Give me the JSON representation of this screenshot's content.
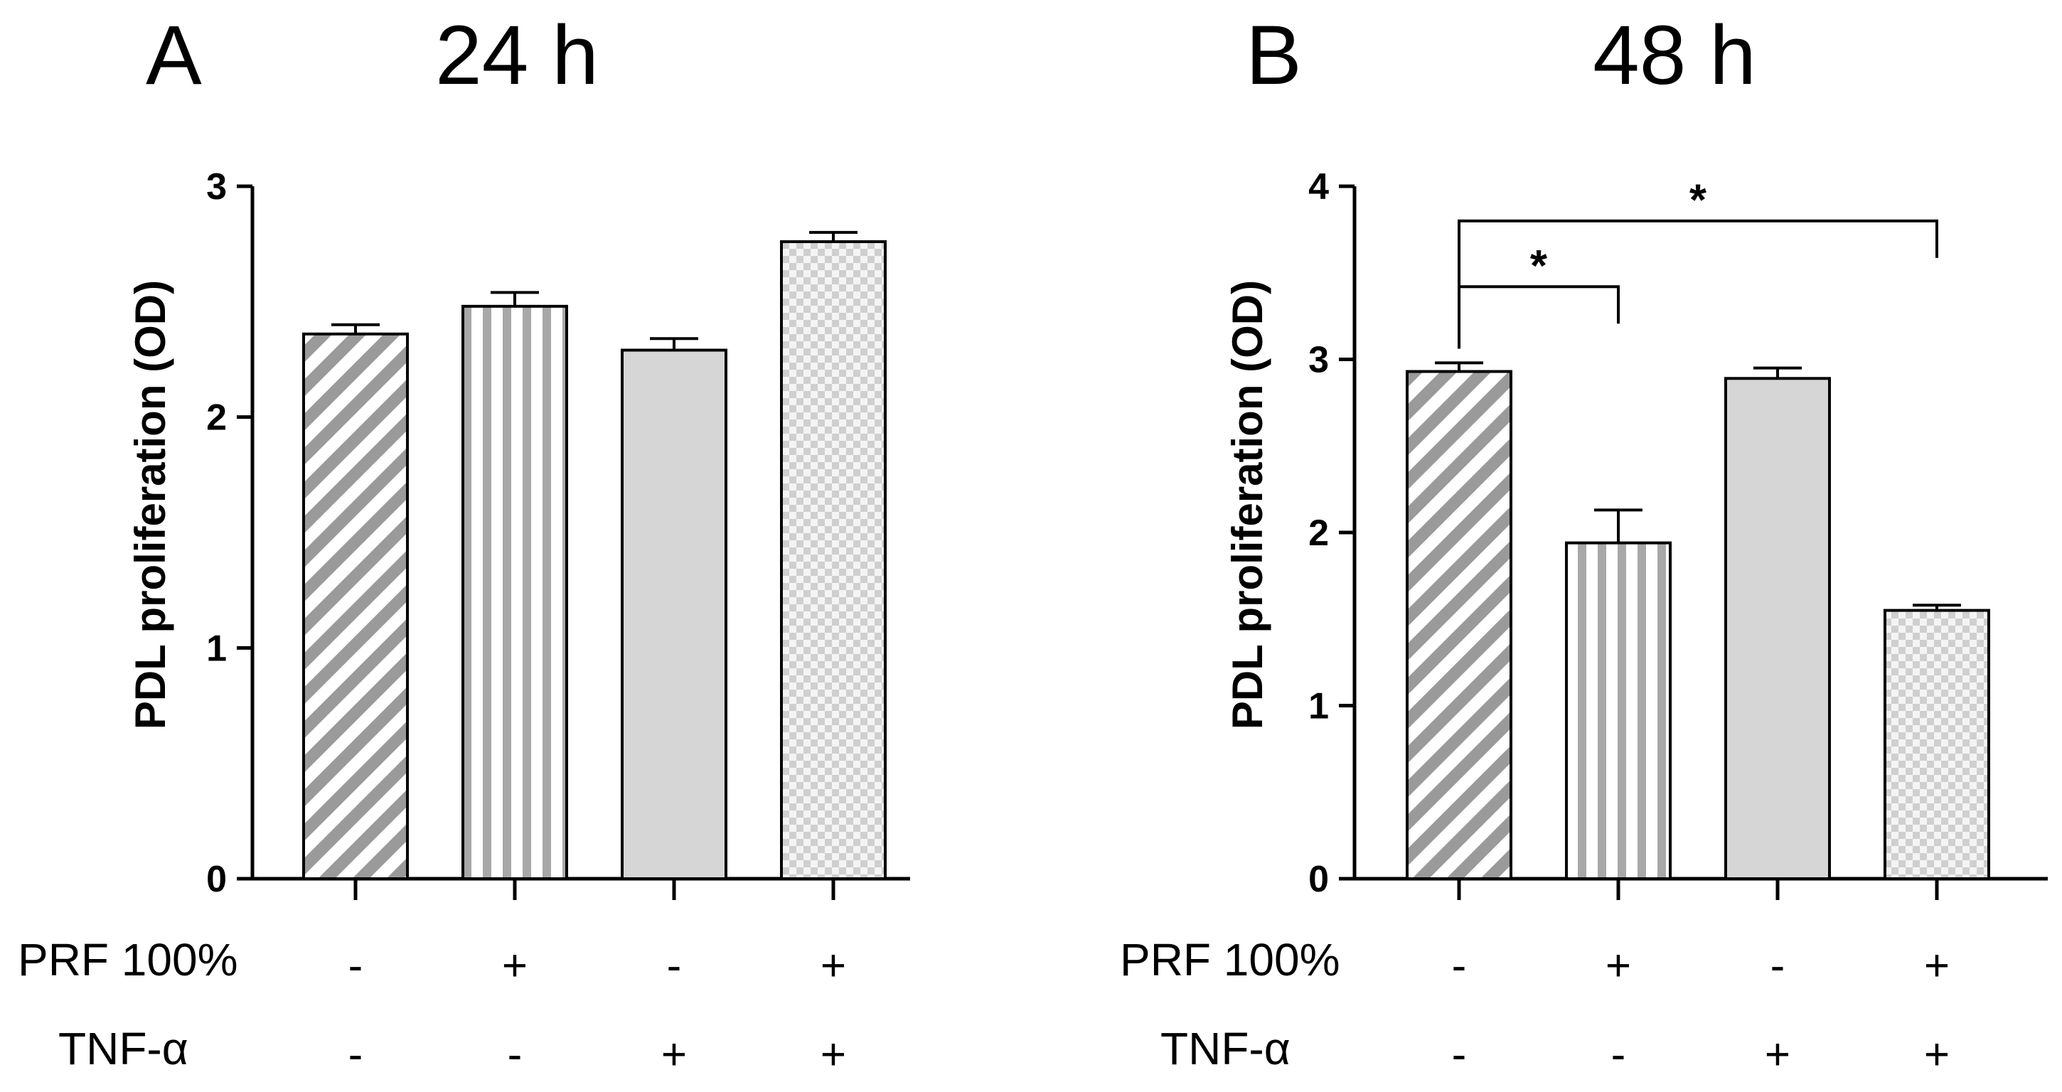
{
  "chart_data": [
    {
      "type": "bar",
      "panel": "A",
      "title": "24 h",
      "ylabel": "PDL proliferation  (OD)",
      "xlabel": "",
      "ylim": [
        0,
        3
      ],
      "yticks": [
        "0",
        "1",
        "2",
        "3"
      ],
      "categories": [
        "-/-",
        "+/-",
        "-/+",
        "+/+"
      ],
      "values": [
        2.36,
        2.48,
        2.29,
        2.76
      ],
      "errors": [
        0.04,
        0.06,
        0.05,
        0.04
      ],
      "patterns": [
        "diagonal",
        "vertical",
        "solid",
        "checker"
      ],
      "rows": [
        {
          "label": "PRF 100%",
          "signs": [
            "-",
            "+",
            "-",
            "+"
          ]
        },
        {
          "label": "TNF-α",
          "signs": [
            "-",
            "-",
            "+",
            "+"
          ]
        }
      ],
      "brackets": []
    },
    {
      "type": "bar",
      "panel": "B",
      "title": "48 h",
      "ylabel": "PDL proliferation  (OD)",
      "xlabel": "",
      "ylim": [
        0,
        4
      ],
      "yticks": [
        "0",
        "1",
        "2",
        "3",
        "4"
      ],
      "categories": [
        "-/-",
        "+/-",
        "-/+",
        "+/+"
      ],
      "values": [
        2.93,
        1.94,
        2.89,
        1.55
      ],
      "errors": [
        0.05,
        0.19,
        0.06,
        0.03
      ],
      "patterns": [
        "diagonal",
        "vertical",
        "solid",
        "checker"
      ],
      "rows": [
        {
          "label": "PRF 100%",
          "signs": [
            "-",
            "+",
            "-",
            "+"
          ]
        },
        {
          "label": "TNF-α",
          "signs": [
            "-",
            "-",
            "+",
            "+"
          ]
        }
      ],
      "brackets": [
        {
          "from": 0,
          "to": 1,
          "label": "*",
          "y": 3.42
        },
        {
          "from": 0,
          "to": 3,
          "label": "*",
          "y": 3.8
        }
      ]
    }
  ]
}
